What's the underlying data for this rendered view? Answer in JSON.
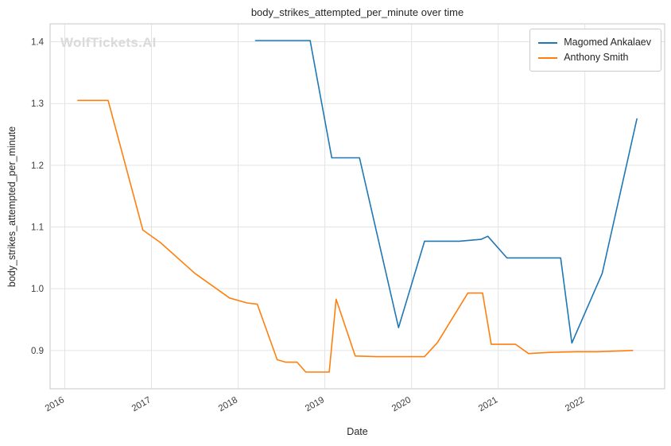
{
  "chart_data": {
    "type": "line",
    "title": "body_strikes_attempted_per_minute over time",
    "xlabel": "Date",
    "ylabel": "body_strikes_attempted_per_minute",
    "watermark": "WolfTickets.AI",
    "grid": true,
    "legend_position": "upper right",
    "xlim": [
      2015.83,
      2022.92
    ],
    "ylim": [
      0.838,
      1.429
    ],
    "x_ticks": [
      2016,
      2017,
      2018,
      2019,
      2020,
      2021,
      2022
    ],
    "x_tick_labels": [
      "2016",
      "2017",
      "2018",
      "2019",
      "2020",
      "2021",
      "2022"
    ],
    "y_ticks": [
      0.9,
      1.0,
      1.1,
      1.2,
      1.3,
      1.4
    ],
    "y_tick_labels": [
      "0.9",
      "1.0",
      "1.1",
      "1.2",
      "1.3",
      "1.4"
    ],
    "series": [
      {
        "name": "Magomed Ankalaev",
        "color": "#1f77b4",
        "x": [
          2018.2,
          2018.75,
          2018.83,
          2019.08,
          2019.4,
          2019.85,
          2020.15,
          2020.55,
          2020.8,
          2020.88,
          2021.1,
          2021.72,
          2021.85,
          2022.2,
          2022.6
        ],
        "y": [
          1.402,
          1.402,
          1.402,
          1.212,
          1.212,
          0.937,
          1.077,
          1.077,
          1.08,
          1.085,
          1.05,
          1.05,
          0.912,
          1.025,
          1.275
        ]
      },
      {
        "name": "Anthony Smith",
        "color": "#ff7f0e",
        "x": [
          2016.15,
          2016.5,
          2016.9,
          2017.1,
          2017.5,
          2017.9,
          2018.1,
          2018.22,
          2018.45,
          2018.55,
          2018.68,
          2018.78,
          2019.05,
          2019.13,
          2019.35,
          2019.6,
          2020.15,
          2020.3,
          2020.65,
          2020.82,
          2020.92,
          2021.2,
          2021.35,
          2021.6,
          2021.9,
          2022.15,
          2022.55
        ],
        "y": [
          1.305,
          1.305,
          1.095,
          1.075,
          1.025,
          0.985,
          0.977,
          0.975,
          0.885,
          0.881,
          0.881,
          0.865,
          0.865,
          0.983,
          0.891,
          0.89,
          0.89,
          0.913,
          0.993,
          0.993,
          0.91,
          0.91,
          0.895,
          0.897,
          0.898,
          0.898,
          0.9
        ]
      }
    ]
  }
}
